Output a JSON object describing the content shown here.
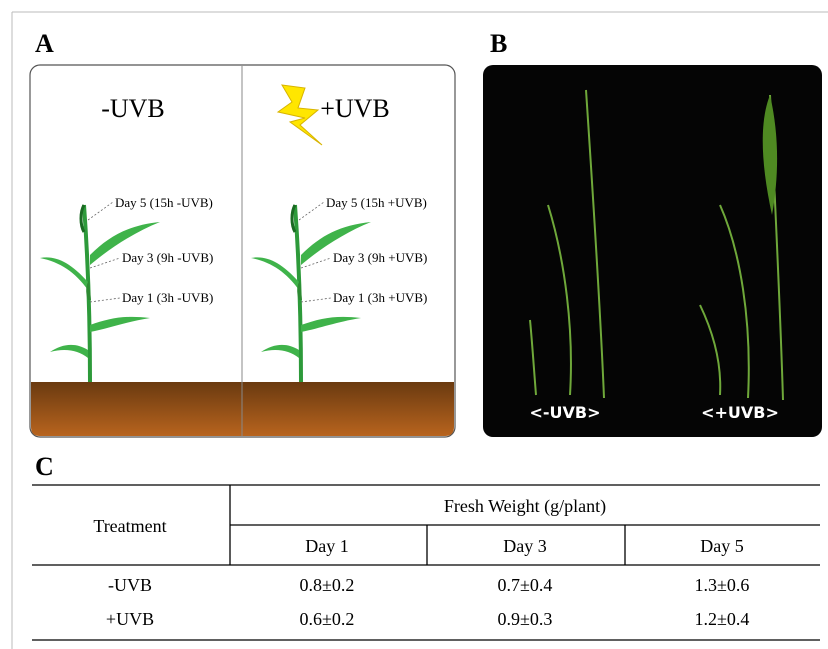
{
  "panel_a": {
    "label": "A",
    "conditions": [
      {
        "title": "-UVB",
        "annotations": [
          "Day 5 (15h -UVB)",
          "Day 3 (9h -UVB)",
          "Day 1 (3h -UVB)"
        ]
      },
      {
        "title": "+UVB",
        "annotations": [
          "Day 5 (15h +UVB)",
          "Day 3 (9h +UVB)",
          "Day 1 (3h +UVB)"
        ]
      }
    ]
  },
  "panel_b": {
    "label": "B",
    "captions": [
      "<-UVB>",
      "<+UVB>"
    ]
  },
  "panel_c": {
    "label": "C",
    "table": {
      "row_header": "Treatment",
      "group_header": "Fresh Weight (g/plant)",
      "columns": [
        "Day 1",
        "Day 3",
        "Day 5"
      ],
      "rows": [
        [
          "-UVB",
          "0.8±0.2",
          "0.7±0.4",
          "1.3±0.6"
        ],
        [
          "+UVB",
          "0.6±0.2",
          "0.9±0.3",
          "1.2±0.4"
        ]
      ]
    }
  }
}
